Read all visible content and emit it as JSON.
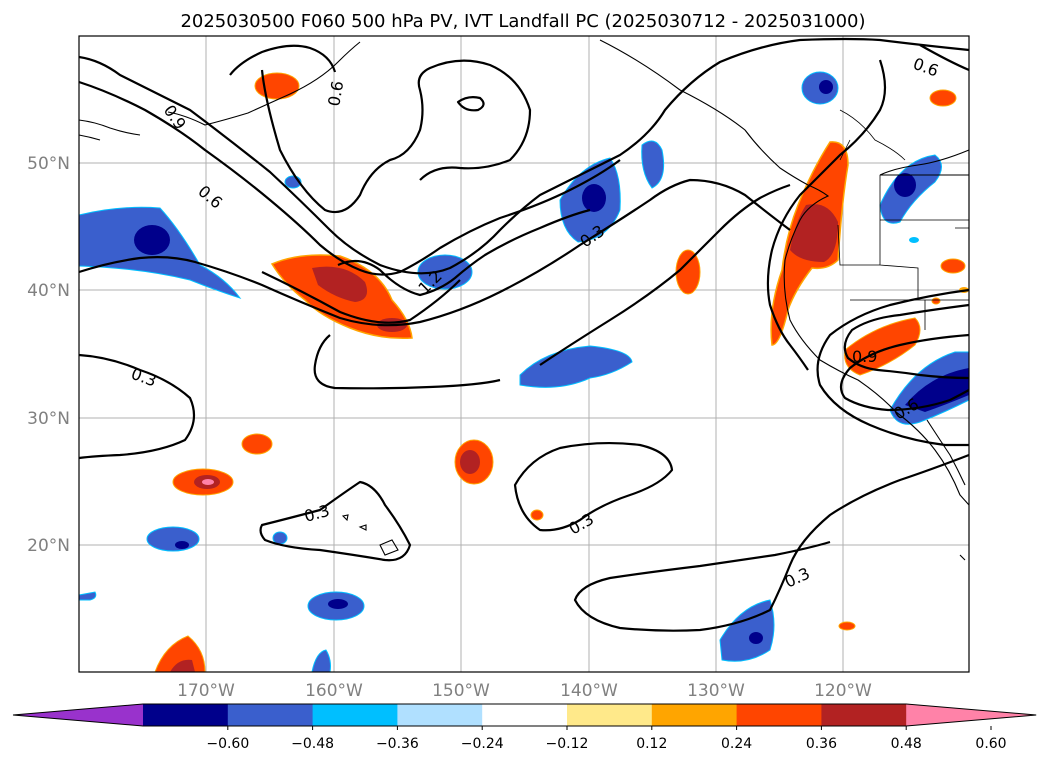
{
  "title": "2025030500 F060 500 hPa PV, IVT Landfall PC (2025030712 - 2025031000)",
  "lat_labels": [
    "50°N",
    "40°N",
    "30°N",
    "20°N"
  ],
  "lon_labels": [
    "170°W",
    "160°W",
    "150°W",
    "140°W",
    "130°W",
    "120°W"
  ],
  "contour_labels": [
    "0.6",
    "0.9",
    "0.6",
    "0.9",
    "0.6",
    "0.3",
    "1.2",
    "0.3",
    "0.3",
    "0.3",
    "0.3",
    "0.9",
    "0.6",
    "0.3"
  ],
  "colorbar": {
    "ticks": [
      "−0.60",
      "−0.48",
      "−0.36",
      "−0.24",
      "−0.12",
      "0.12",
      "0.24",
      "0.36",
      "0.48",
      "0.60"
    ],
    "colors": [
      "#9932cc",
      "#00008b",
      "#3a5fcd",
      "#00bfff",
      "#b0e0ff",
      "#ffffff",
      "#ffe98a",
      "#ffa500",
      "#ff4500",
      "#b22222",
      "#ff82a8"
    ]
  }
}
